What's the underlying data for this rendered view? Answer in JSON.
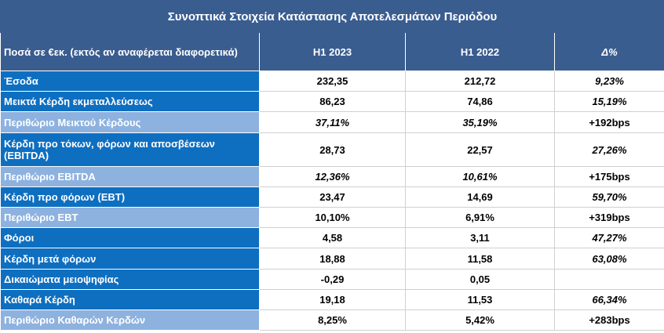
{
  "title": "Συνοπτικά Στοιχεία Κατάστασης Αποτελεσμάτων Περιόδου",
  "header": {
    "label": "Ποσά σε €εκ. (εκτός αν αναφέρεται διαφορετικά)",
    "col1": "H1 2023",
    "col2": "H1 2022",
    "col3": "Δ%"
  },
  "rows": [
    {
      "label": "Έσοδα",
      "v1": "232,35",
      "v2": "212,72",
      "d": "9,23%",
      "shade": "dark",
      "italic": false,
      "h": 26
    },
    {
      "label": "Μεικτά Κέρδη εκμεταλλεύσεως",
      "v1": "86,23",
      "v2": "74,86",
      "d": "15,19%",
      "shade": "dark",
      "italic": false,
      "h": 26
    },
    {
      "label": "Περιθώριο Μεικτού Κέρδους",
      "v1": "37,11%",
      "v2": "35,19%",
      "d": "+192bps",
      "shade": "light",
      "italic": true,
      "h": 27
    },
    {
      "label": "Κέρδη προ τόκων, φόρων και αποσβέσεων (EBITDA)",
      "v1": "28,73",
      "v2": "22,57",
      "d": "27,26%",
      "shade": "dark",
      "italic": false,
      "h": 43
    },
    {
      "label": "Περιθώριο EBITDA",
      "v1": "12,36%",
      "v2": "10,61%",
      "d": "+175bps",
      "shade": "light",
      "italic": true,
      "h": 26
    },
    {
      "label": "Κέρδη προ φόρων (EBT)",
      "v1": "23,47",
      "v2": "14,69",
      "d": "59,70%",
      "shade": "dark",
      "italic": false,
      "h": 26
    },
    {
      "label": "Περιθώριο EBT",
      "v1": "10,10%",
      "v2": "6,91%",
      "d": "+319bps",
      "shade": "light",
      "italic": false,
      "h": 26
    },
    {
      "label": "Φόροι",
      "v1": "4,58",
      "v2": "3,11",
      "d": "47,27%",
      "shade": "dark",
      "italic": false,
      "h": 26
    },
    {
      "label": "Κέρδη μετά φόρων",
      "v1": "18,88",
      "v2": "11,58",
      "d": "63,08%",
      "shade": "dark",
      "italic": false,
      "h": 27
    },
    {
      "label": "Δικαιώματα μειοψηφίας",
      "v1": "-0,29",
      "v2": "0,05",
      "d": "",
      "shade": "dark",
      "italic": false,
      "h": 26
    },
    {
      "label": "Καθαρά Κέρδη",
      "v1": "19,18",
      "v2": "11,53",
      "d": "66,34%",
      "shade": "dark",
      "italic": false,
      "h": 26
    },
    {
      "label": "Περιθώριο Καθαρών Κερδών",
      "v1": "8,25%",
      "v2": "5,42%",
      "d": "+283bps",
      "shade": "light",
      "italic": false,
      "h": 26
    }
  ]
}
